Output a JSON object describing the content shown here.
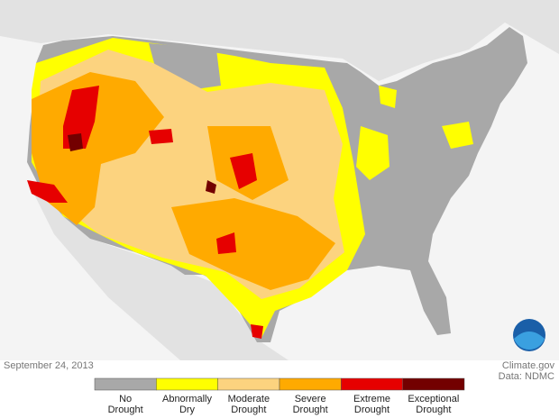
{
  "date": "September 24, 2013",
  "credit": {
    "source": "Climate.gov",
    "data": "Data: NDMC"
  },
  "legend": [
    {
      "label": "No Drought",
      "color": "#a8a8a8"
    },
    {
      "label": "Abnormally Dry",
      "color": "#ffff00"
    },
    {
      "label": "Moderate Drought",
      "color": "#fcd37f"
    },
    {
      "label": "Severe Drought",
      "color": "#ffaa00"
    },
    {
      "label": "Extreme Drought",
      "color": "#e60000"
    },
    {
      "label": "Exceptional Drought",
      "color": "#730000"
    }
  ]
}
